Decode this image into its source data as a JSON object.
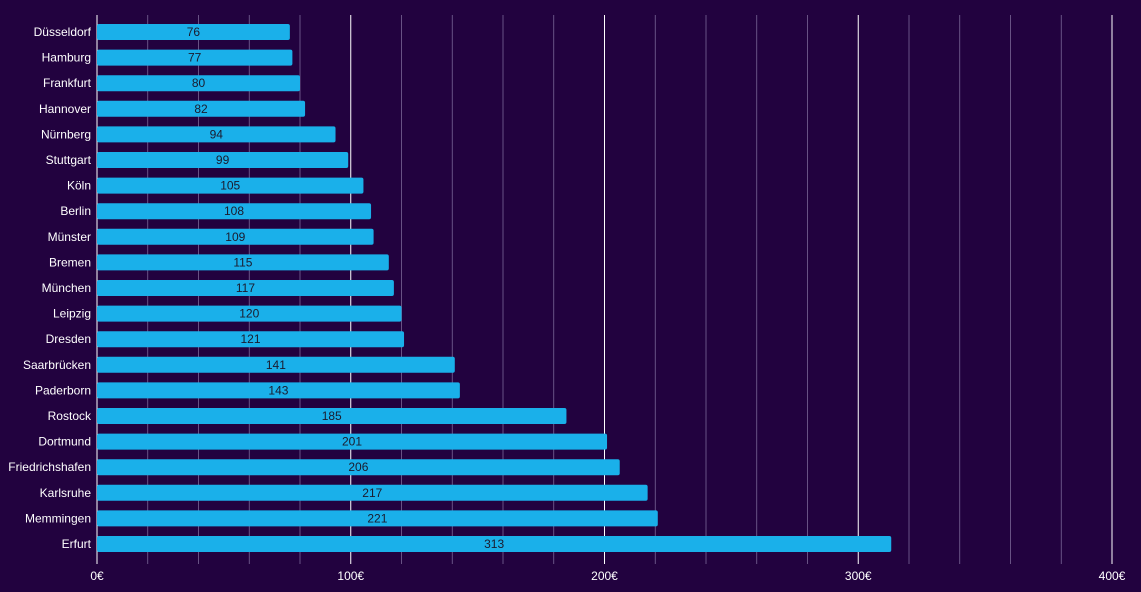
{
  "chart_data": {
    "type": "bar",
    "orientation": "horizontal",
    "categories": [
      "Düsseldorf",
      "Hamburg",
      "Frankfurt",
      "Hannover",
      "Nürnberg",
      "Stuttgart",
      "Köln",
      "Berlin",
      "Münster",
      "Bremen",
      "München",
      "Leipzig",
      "Dresden",
      "Saarbrücken",
      "Paderborn",
      "Rostock",
      "Dortmund",
      "Friedrichshafen",
      "Karlsruhe",
      "Memmingen",
      "Erfurt"
    ],
    "values": [
      76,
      77,
      80,
      82,
      94,
      99,
      105,
      108,
      109,
      115,
      117,
      120,
      121,
      141,
      143,
      185,
      201,
      206,
      217,
      221,
      313
    ],
    "xlim": [
      0,
      400
    ],
    "x_ticks": [
      0,
      100,
      200,
      300,
      400
    ],
    "x_tick_labels": [
      "0€",
      "100€",
      "200€",
      "300€",
      "400€"
    ],
    "grid": true,
    "minor_grid_step": 20,
    "colors": {
      "background": "#22023f",
      "bar": "#1ab0ea",
      "major_grid": "#ffffff",
      "minor_grid": "#7a6796",
      "label_text": "#ffffff",
      "value_text": "#1b1b2e"
    }
  }
}
